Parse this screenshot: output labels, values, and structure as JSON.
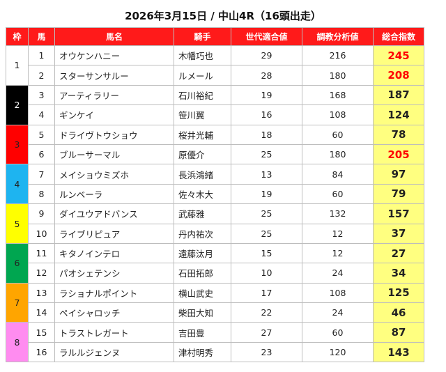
{
  "title": "2026年3月15日 / 中山4R（16頭出走）",
  "headers": {
    "waku": "枠",
    "uma": "馬",
    "name": "馬名",
    "jockey": "騎手",
    "sedai": "世代適合値",
    "chokyo": "調教分析値",
    "total": "総合指数"
  },
  "colors": {
    "header_bg": "#ff1a1a",
    "total_bg": "#ffff80",
    "highlight_text": "#ff0000",
    "waku_colors": [
      "#ffffff",
      "#000000",
      "#ff0000",
      "#1e90ff",
      "#ffff00",
      "#00a650",
      "#ffa500",
      "#ff80ff"
    ]
  },
  "waku": [
    {
      "label": "1",
      "bg": "#ffffff",
      "fg": "#222222"
    },
    {
      "label": "2",
      "bg": "#000000",
      "fg": "#ffffff"
    },
    {
      "label": "3",
      "bg": "#ff0000",
      "fg": "#222222"
    },
    {
      "label": "4",
      "bg": "#1eb4f0",
      "fg": "#222222"
    },
    {
      "label": "5",
      "bg": "#ffff00",
      "fg": "#222222"
    },
    {
      "label": "6",
      "bg": "#00a650",
      "fg": "#222222"
    },
    {
      "label": "7",
      "bg": "#ffa500",
      "fg": "#222222"
    },
    {
      "label": "8",
      "bg": "#ff8cf0",
      "fg": "#222222"
    }
  ],
  "rows": [
    {
      "uma": "1",
      "name": "オウケンハニー",
      "jockey": "木幡巧也",
      "sedai": "29",
      "chokyo": "216",
      "total": "245",
      "highlight": true
    },
    {
      "uma": "2",
      "name": "スターサンサルー",
      "jockey": "ルメール",
      "sedai": "28",
      "chokyo": "180",
      "total": "208",
      "highlight": true
    },
    {
      "uma": "3",
      "name": "アーティラリー",
      "jockey": "石川裕紀",
      "sedai": "19",
      "chokyo": "168",
      "total": "187",
      "highlight": false
    },
    {
      "uma": "4",
      "name": "ギンケイ",
      "jockey": "笹川翼",
      "sedai": "16",
      "chokyo": "108",
      "total": "124",
      "highlight": false
    },
    {
      "uma": "5",
      "name": "ドライヴトウショウ",
      "jockey": "桜井光輔",
      "sedai": "18",
      "chokyo": "60",
      "total": "78",
      "highlight": false
    },
    {
      "uma": "6",
      "name": "ブルーサーマル",
      "jockey": "原優介",
      "sedai": "25",
      "chokyo": "180",
      "total": "205",
      "highlight": true
    },
    {
      "uma": "7",
      "name": "メイショウミズホ",
      "jockey": "長浜鴻緒",
      "sedai": "13",
      "chokyo": "84",
      "total": "97",
      "highlight": false
    },
    {
      "uma": "8",
      "name": "ルンベーラ",
      "jockey": "佐々木大",
      "sedai": "19",
      "chokyo": "60",
      "total": "79",
      "highlight": false
    },
    {
      "uma": "9",
      "name": "ダイユウアドバンス",
      "jockey": "武藤雅",
      "sedai": "25",
      "chokyo": "132",
      "total": "157",
      "highlight": false
    },
    {
      "uma": "10",
      "name": "ライブリピュア",
      "jockey": "丹内祐次",
      "sedai": "25",
      "chokyo": "12",
      "total": "37",
      "highlight": false
    },
    {
      "uma": "11",
      "name": "キタノインテロ",
      "jockey": "遠藤汰月",
      "sedai": "15",
      "chokyo": "12",
      "total": "27",
      "highlight": false
    },
    {
      "uma": "12",
      "name": "パオシェテンシ",
      "jockey": "石田拓郎",
      "sedai": "10",
      "chokyo": "24",
      "total": "34",
      "highlight": false
    },
    {
      "uma": "13",
      "name": "ラショナルポイント",
      "jockey": "横山武史",
      "sedai": "17",
      "chokyo": "108",
      "total": "125",
      "highlight": false
    },
    {
      "uma": "14",
      "name": "ペイシャロッチ",
      "jockey": "柴田大知",
      "sedai": "22",
      "chokyo": "24",
      "total": "46",
      "highlight": false
    },
    {
      "uma": "15",
      "name": "トラストレガート",
      "jockey": "吉田豊",
      "sedai": "27",
      "chokyo": "60",
      "total": "87",
      "highlight": false
    },
    {
      "uma": "16",
      "name": "ラルルジェンヌ",
      "jockey": "津村明秀",
      "sedai": "23",
      "chokyo": "120",
      "total": "143",
      "highlight": false
    }
  ]
}
